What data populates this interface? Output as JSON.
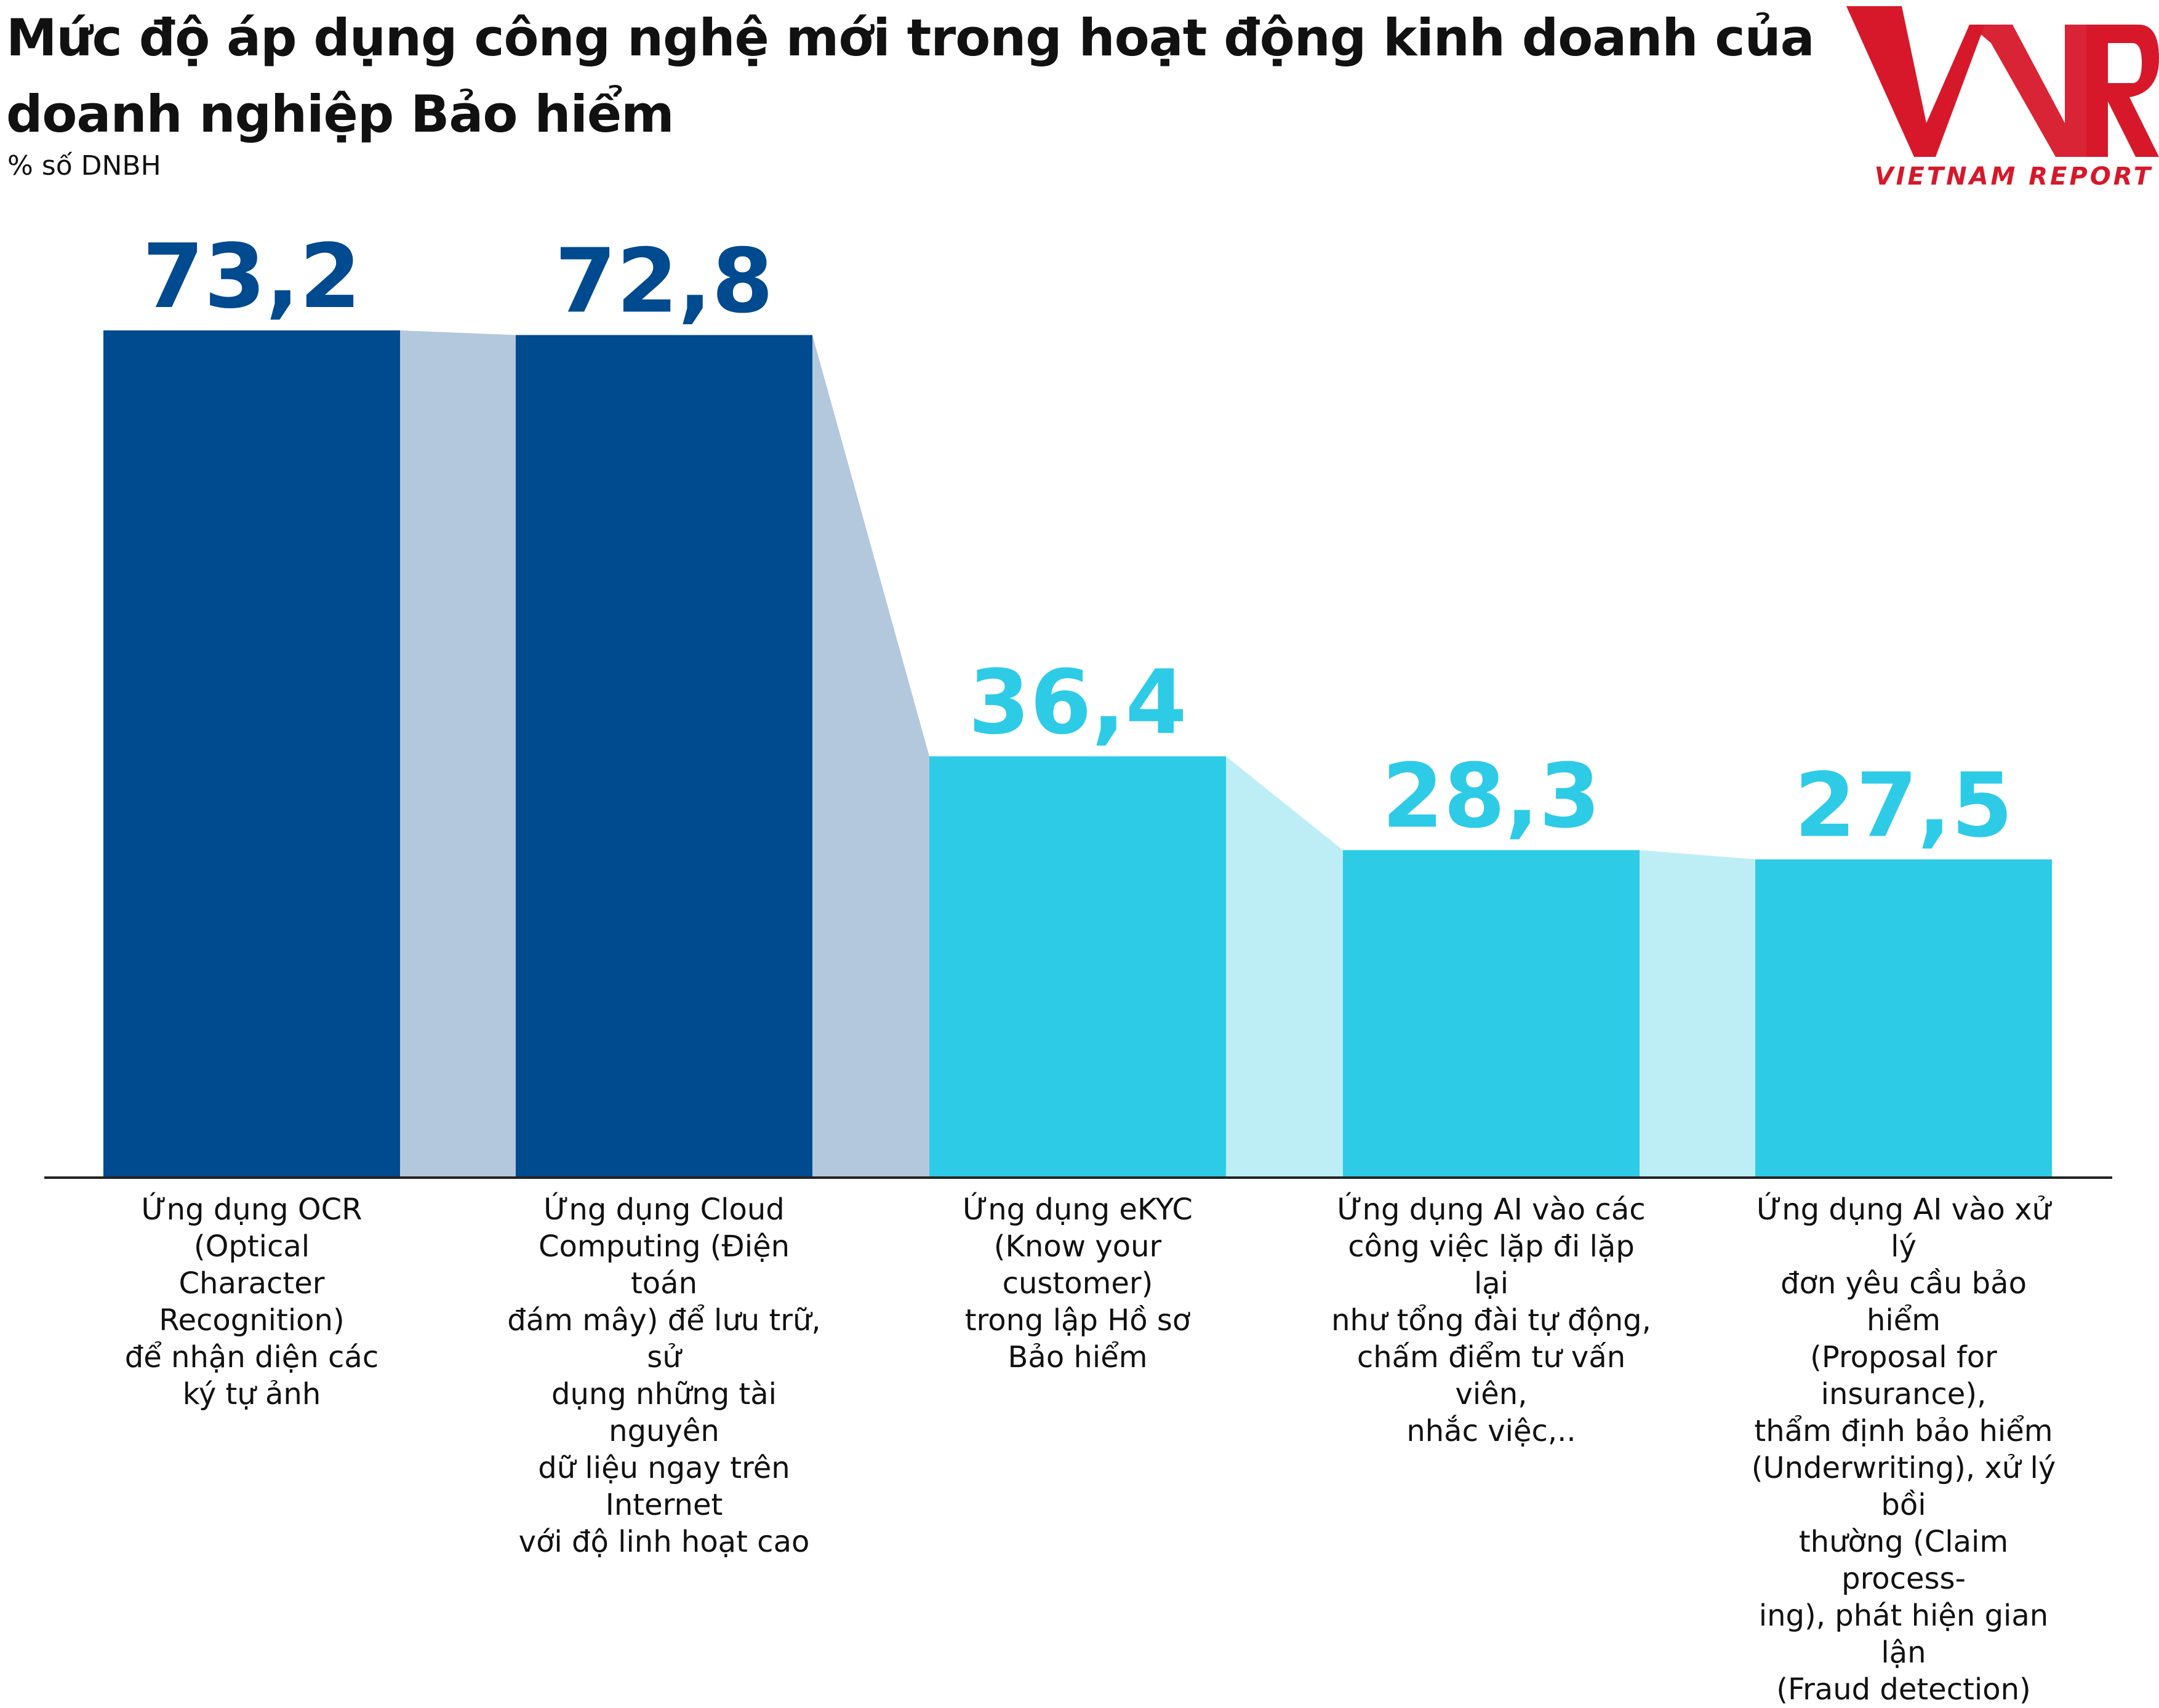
{
  "title": "Mức độ áp dụng công nghệ mới trong hoạt động kinh doanh của doanh nghiệp Bảo hiểm",
  "subtitle": "% số DNBH",
  "logo": {
    "text": "VNR",
    "tagline": "VIETNAM REPORT"
  },
  "colors": {
    "dark": "#004a8f",
    "darkConnector": "#b3c8dd",
    "light": "#2ecbe6",
    "lightConnector": "#bdeef5",
    "axis": "#222222"
  },
  "chart_data": {
    "type": "bar",
    "title": "Mức độ áp dụng công nghệ mới trong hoạt động kinh doanh của doanh nghiệp Bảo hiểm",
    "ylabel": "% số DNBH",
    "ylim": [
      0,
      73.2
    ],
    "grid": false,
    "categories": [
      "Ứng dụng OCR (Optical\nCharacter Recognition)\nđể nhận diện các\nký tự ảnh",
      "Ứng dụng Cloud\nComputing (Điện toán\nđám mây) để lưu trữ, sử\ndụng những tài nguyên\ndữ liệu ngay trên Internet\nvới độ linh hoạt cao",
      "Ứng dụng eKYC\n(Know your customer)\ntrong lập Hồ sơ\nBảo hiểm",
      "Ứng dụng AI vào các\ncông việc lặp đi lặp lại\nnhư tổng đài tự động,\nchấm điểm tư vấn viên,\nnhắc việc,..",
      "Ứng dụng AI vào xử lý\nđơn yêu cầu bảo hiểm\n(Proposal for insurance),\nthẩm định bảo hiểm\n(Underwriting), xử lý bồi\nthường (Claim process-\ning), phát hiện gian lận\n(Fraud detection)"
    ],
    "values": [
      73.2,
      72.8,
      36.4,
      28.3,
      27.5
    ],
    "value_labels": [
      "73,2",
      "72,8",
      "36,4",
      "28,3",
      "27,5"
    ]
  }
}
